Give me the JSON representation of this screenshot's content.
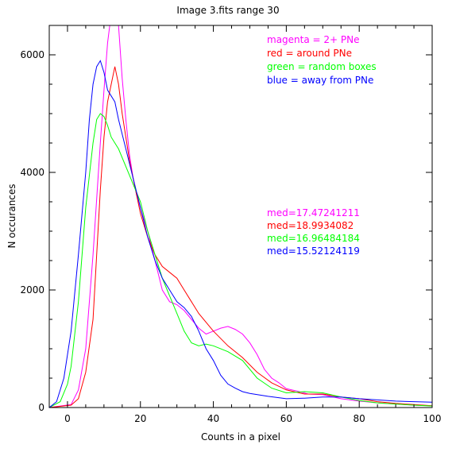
{
  "chart_data": {
    "type": "line",
    "title": "Image 3.fits    range 30",
    "xlabel": "Counts in a pixel",
    "ylabel": "N  occurances",
    "xlim": [
      -5,
      100
    ],
    "ylim": [
      0,
      6500
    ],
    "xticks": [
      0,
      20,
      40,
      60,
      80,
      100
    ],
    "yticks": [
      0,
      2000,
      4000,
      6000
    ],
    "xtick_labels": [
      "0",
      "20",
      "40",
      "60",
      "80",
      "100"
    ],
    "ytick_labels": [
      "0",
      "2000",
      "4000",
      "6000"
    ],
    "grid": false,
    "legend": [
      {
        "text": "magenta = 2+ PNe",
        "color": "#ff00ff"
      },
      {
        "text": "red = around PNe",
        "color": "#ff0000"
      },
      {
        "text": "green = random boxes",
        "color": "#00ff00"
      },
      {
        "text": "blue = away from PNe",
        "color": "#0000ff"
      }
    ],
    "annotations": [
      {
        "text": "med=17.47241211",
        "color": "#ff00ff"
      },
      {
        "text": "med=18.9934082",
        "color": "#ff0000"
      },
      {
        "text": "med=16.96484184",
        "color": "#00ff00"
      },
      {
        "text": "med=15.52124119",
        "color": "#0000ff"
      }
    ],
    "series": [
      {
        "color": "#ff00ff",
        "x": [
          -5,
          1,
          3,
          5,
          7,
          9,
          10,
          11,
          12,
          13,
          14,
          15,
          16,
          17,
          18,
          19,
          20,
          22,
          24,
          26,
          28,
          30,
          32,
          34,
          36,
          38,
          40,
          42,
          44,
          46,
          48,
          50,
          52,
          54,
          56,
          58,
          60,
          63,
          66,
          70,
          75,
          80,
          85,
          90,
          95,
          100
        ],
        "y": [
          0,
          50,
          300,
          1000,
          2600,
          4500,
          5400,
          6200,
          6700,
          6900,
          6500,
          5600,
          4900,
          4300,
          3900,
          3600,
          3400,
          3000,
          2500,
          2000,
          1800,
          1750,
          1650,
          1500,
          1350,
          1250,
          1300,
          1350,
          1380,
          1330,
          1250,
          1100,
          900,
          650,
          500,
          420,
          320,
          280,
          230,
          220,
          150,
          110,
          80,
          60,
          40,
          30
        ]
      },
      {
        "color": "#ff0000",
        "x": [
          -5,
          1,
          3,
          5,
          7,
          8,
          9,
          10,
          11,
          12,
          13,
          14,
          15,
          16,
          17,
          18,
          20,
          22,
          24,
          26,
          28,
          30,
          32,
          34,
          36,
          38,
          40,
          44,
          48,
          52,
          56,
          60,
          65,
          70,
          75,
          80,
          85,
          90,
          95,
          100
        ],
        "y": [
          0,
          40,
          150,
          600,
          1500,
          2600,
          3700,
          4600,
          5200,
          5500,
          5800,
          5500,
          5000,
          4600,
          4200,
          3900,
          3300,
          2900,
          2600,
          2400,
          2300,
          2200,
          2000,
          1800,
          1600,
          1450,
          1300,
          1050,
          850,
          600,
          420,
          300,
          230,
          230,
          180,
          150,
          100,
          70,
          50,
          30
        ]
      },
      {
        "color": "#00ff00",
        "x": [
          -5,
          -2,
          0,
          1,
          3,
          5,
          7,
          8,
          9,
          10,
          11,
          12,
          13,
          14,
          16,
          18,
          20,
          22,
          24,
          26,
          28,
          30,
          32,
          34,
          36,
          38,
          40,
          44,
          48,
          52,
          56,
          60,
          65,
          70,
          75,
          80,
          85,
          90,
          95,
          100
        ],
        "y": [
          0,
          100,
          400,
          700,
          1800,
          3400,
          4500,
          4900,
          5000,
          4950,
          4800,
          4600,
          4500,
          4400,
          4100,
          3800,
          3500,
          3000,
          2600,
          2200,
          1900,
          1600,
          1300,
          1100,
          1050,
          1080,
          1050,
          950,
          800,
          500,
          330,
          250,
          270,
          250,
          180,
          120,
          80,
          60,
          40,
          25
        ]
      },
      {
        "color": "#0000ff",
        "x": [
          -5,
          -3,
          -1,
          1,
          3,
          5,
          6,
          7,
          8,
          9,
          10,
          11,
          12,
          13,
          14,
          16,
          18,
          20,
          22,
          24,
          26,
          28,
          30,
          32,
          34,
          36,
          38,
          40,
          42,
          44,
          46,
          48,
          50,
          55,
          60,
          65,
          70,
          75,
          80,
          85,
          90,
          95,
          100
        ],
        "y": [
          0,
          100,
          500,
          1300,
          2600,
          4000,
          4900,
          5500,
          5800,
          5900,
          5700,
          5400,
          5300,
          5200,
          4900,
          4400,
          3900,
          3400,
          2900,
          2500,
          2200,
          2000,
          1800,
          1700,
          1550,
          1300,
          1000,
          800,
          550,
          400,
          330,
          270,
          240,
          190,
          150,
          160,
          180,
          180,
          150,
          130,
          110,
          100,
          90
        ]
      }
    ]
  }
}
